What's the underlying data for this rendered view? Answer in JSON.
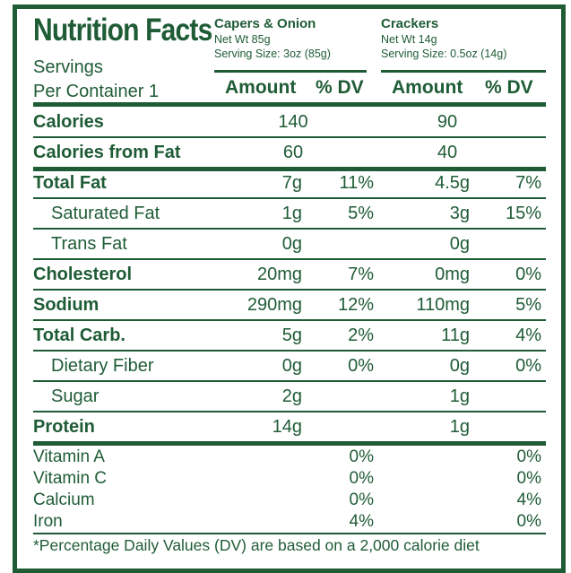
{
  "title": "Nutrition Facts",
  "servings_line1": "Servings",
  "servings_line2": "Per Container 1",
  "products": [
    {
      "name": "Capers & Onion",
      "net_wt": "Net Wt 85g",
      "serving_size": "Serving Size: 3oz (85g)"
    },
    {
      "name": "Crackers",
      "net_wt": "Net Wt 14g",
      "serving_size": "Serving Size: 0.5oz (14g)"
    }
  ],
  "headers": {
    "amount": "Amount",
    "dv": "% DV"
  },
  "rows": [
    {
      "name": "Calories",
      "a1": "140",
      "d1": "",
      "a2": "90",
      "d2": ""
    },
    {
      "name": "Calories from Fat",
      "a1": "60",
      "d1": "",
      "a2": "40",
      "d2": ""
    },
    {
      "name": "Total Fat",
      "a1": "7g",
      "d1": "11%",
      "a2": "4.5g",
      "d2": "7%"
    },
    {
      "name": "Saturated Fat",
      "a1": "1g",
      "d1": "5%",
      "a2": "3g",
      "d2": "15%"
    },
    {
      "name": "Trans Fat",
      "a1": "0g",
      "d1": "",
      "a2": "0g",
      "d2": ""
    },
    {
      "name": "Cholesterol",
      "a1": "20mg",
      "d1": "7%",
      "a2": "0mg",
      "d2": "0%"
    },
    {
      "name": "Sodium",
      "a1": "290mg",
      "d1": "12%",
      "a2": "110mg",
      "d2": "5%"
    },
    {
      "name": "Total Carb.",
      "a1": "5g",
      "d1": "2%",
      "a2": "11g",
      "d2": "4%"
    },
    {
      "name": "Dietary Fiber",
      "a1": "0g",
      "d1": "0%",
      "a2": "0g",
      "d2": "0%"
    },
    {
      "name": "Sugar",
      "a1": "2g",
      "d1": "",
      "a2": "1g",
      "d2": ""
    },
    {
      "name": "Protein",
      "a1": "14g",
      "d1": "",
      "a2": "1g",
      "d2": ""
    }
  ],
  "vitamins": [
    {
      "name": "Vitamin A",
      "d1": "0%",
      "d2": "0%"
    },
    {
      "name": "Vitamin C",
      "d1": "0%",
      "d2": "0%"
    },
    {
      "name": "Calcium",
      "d1": "0%",
      "d2": "4%"
    },
    {
      "name": "Iron",
      "d1": "4%",
      "d2": "0%"
    }
  ],
  "footnote": "*Percentage Daily Values (DV) are based on a 2,000 calorie diet",
  "colors": {
    "accent": "#1f5c36",
    "background": "#ffffff"
  }
}
